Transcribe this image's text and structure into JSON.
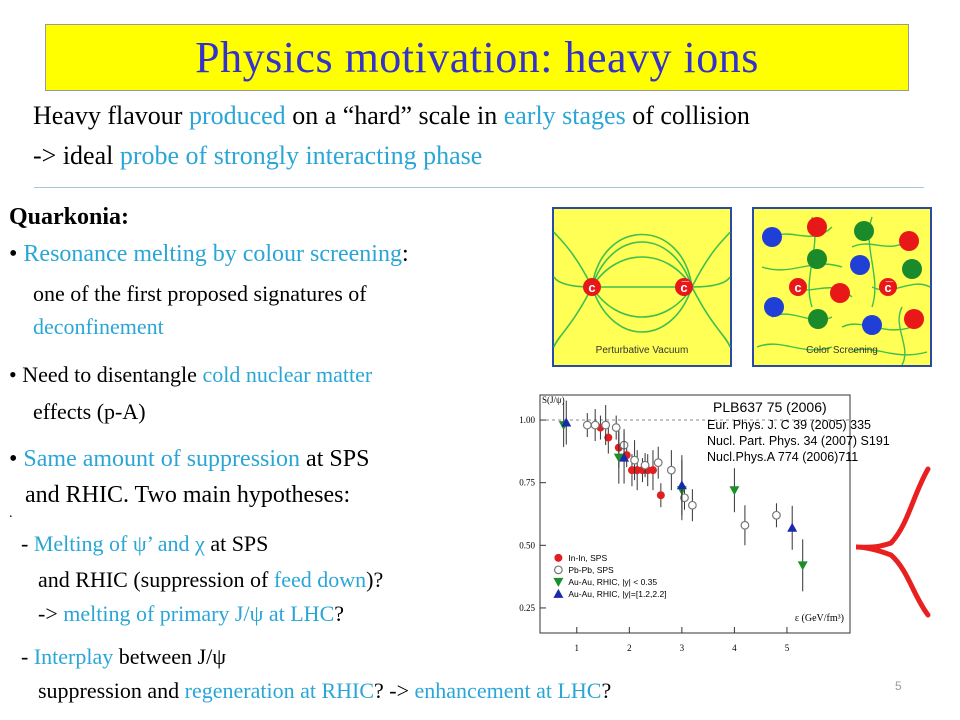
{
  "slide": {
    "title": "Physics motivation: heavy ions",
    "page_number": "5"
  },
  "intro": {
    "l1_a": "Heavy flavour",
    "l1_b": "produced",
    "l1_c": "on a “hard” scale in",
    "l1_d": "early stages",
    "l1_e": "of collision",
    "l2_a": "-> ideal",
    "l2_b": "probe of strongly interacting phase"
  },
  "quarkonia": {
    "heading": "Quarkonia:",
    "b1_text": "Resonance melting by colour screening",
    "b1_colon": ":",
    "b1_l2": "one of the first proposed signatures of",
    "b1_l3": "deconfinement",
    "b2_a": "Need to disentangle",
    "b2_b": "cold nuclear matter",
    "b2_l2": "effects (p-A)",
    "b3_a": "Same amount of suppression",
    "b3_b": "at SPS",
    "b3_l2": "and RHIC. Two main hypotheses:",
    "stray_dot": ".",
    "h1_a": "- ",
    "h1_b": "Melting of  ψ’ and χ",
    "h1_c": " at SPS",
    "h1_l2_a": "and RHIC (suppression of ",
    "h1_l2_b": "feed down",
    "h1_l2_c": ")?",
    "h1_l3_a": "-> ",
    "h1_l3_b": "melting of primary J/ψ at LHC",
    "h1_l3_c": "?",
    "h2_a": "- ",
    "h2_b": "Interplay",
    "h2_c": " between  J/ψ",
    "h2_l2_a": "suppression and ",
    "h2_l2_b": "regeneration at RHIC",
    "h2_l2_c": "?  -> ",
    "h2_l2_d": "enhancement at LHC",
    "h2_l2_e": "?"
  },
  "figures": {
    "left_caption": "Perturbative Vacuum",
    "right_caption": "Color Screening",
    "quark_label": "c",
    "antiquark_label": "c̅"
  },
  "chart_data": {
    "type": "scatter",
    "title": "",
    "ylabel": "S(J/ψ)",
    "xlabel": "ε (GeV/fm³)",
    "xlim": [
      0.3,
      6.2
    ],
    "ylim": [
      0.15,
      1.1
    ],
    "x_ticks": [
      "1",
      "2",
      "3",
      "4",
      "5"
    ],
    "y_ticks": [
      "0.25",
      "0.50",
      "0.75",
      "1.00"
    ],
    "reference_line_y": 1.0,
    "ref_main": "PLB637 75 (2006)",
    "refs": [
      "Eur. Phys. J. C 39 (2005) 335",
      "Nucl. Part. Phys. 34 (2007) S191",
      "Nucl.Phys.A 774 (2006)711"
    ],
    "legend": [
      "In-In, SPS",
      "Pb-Pb, SPS",
      "Au-Au, RHIC, |y| < 0.35",
      "Au-Au, RHIC, |y|=[1.2,2.2]"
    ],
    "series": [
      {
        "name": "In-In, SPS",
        "marker": "circle-filled",
        "color": "#e02020",
        "x": [
          1.45,
          1.6,
          1.8,
          1.95,
          2.05,
          2.15,
          2.25,
          2.35,
          2.45,
          2.6
        ],
        "y": [
          0.97,
          0.93,
          0.89,
          0.86,
          0.8,
          0.8,
          0.8,
          0.8,
          0.8,
          0.7
        ]
      },
      {
        "name": "Pb-Pb, SPS",
        "marker": "circle-open",
        "color": "#777777",
        "x": [
          1.2,
          1.35,
          1.55,
          1.75,
          1.9,
          2.1,
          2.3,
          2.55,
          2.8,
          3.05,
          3.2,
          4.2,
          4.8
        ],
        "y": [
          0.98,
          0.98,
          0.98,
          0.97,
          0.9,
          0.84,
          0.82,
          0.83,
          0.8,
          0.69,
          0.66,
          0.58,
          0.62
        ]
      },
      {
        "name": "Au-Au, RHIC, |y| < 0.35",
        "marker": "triangle-down",
        "color": "#1a8f2a",
        "x": [
          0.75,
          1.8,
          3.0,
          4.0,
          5.3
        ],
        "y": [
          0.98,
          0.85,
          0.72,
          0.72,
          0.42
        ]
      },
      {
        "name": "Au-Au, RHIC, |y|=[1.2,2.2]",
        "marker": "triangle-up",
        "color": "#1a2aa8",
        "x": [
          0.8,
          1.9,
          3.0,
          5.1
        ],
        "y": [
          0.99,
          0.85,
          0.74,
          0.57
        ]
      }
    ]
  }
}
